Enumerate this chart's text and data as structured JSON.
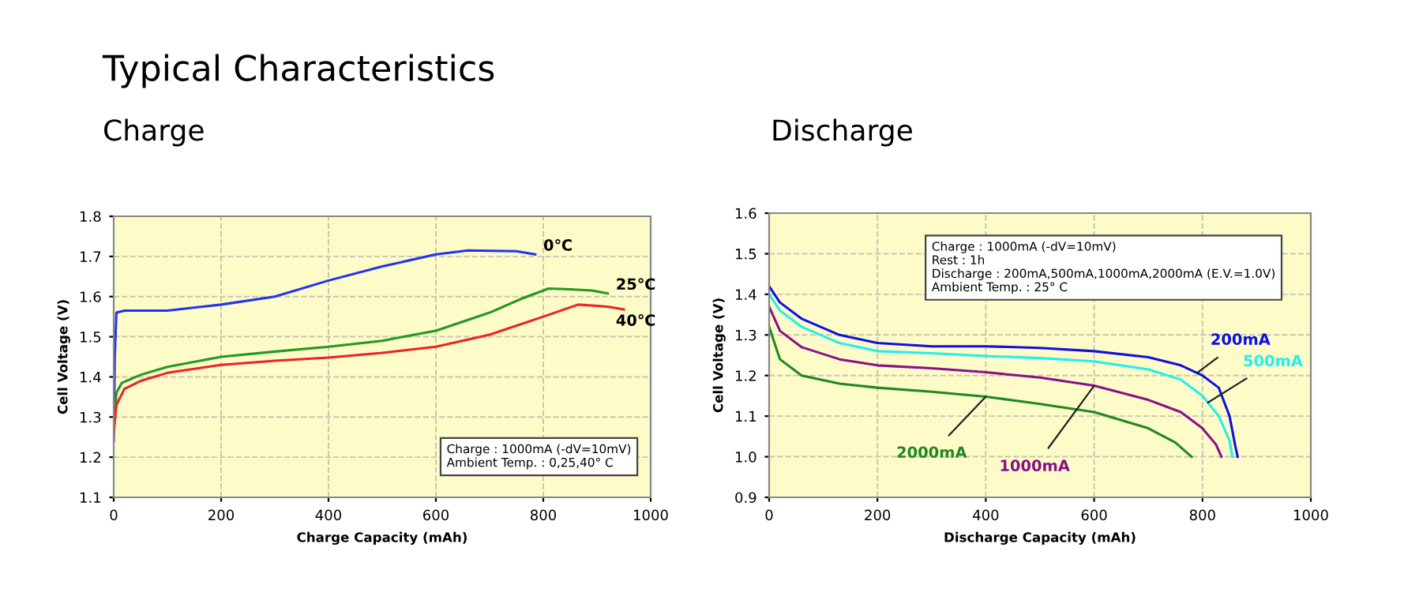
{
  "chart_data": [
    {
      "type": "line",
      "title": "Typical Characteristics",
      "subtitle": "Charge",
      "xlabel": "Charge Capacity (mAh)",
      "ylabel": "Cell Voltage (V)",
      "xlim": [
        0,
        1000
      ],
      "ylim": [
        1.1,
        1.8
      ],
      "xticks": [
        0,
        200,
        400,
        600,
        800,
        1000
      ],
      "yticks": [
        1.1,
        1.2,
        1.3,
        1.4,
        1.5,
        1.6,
        1.7,
        1.8
      ],
      "grid": true,
      "legend": false,
      "marker": "none",
      "line_style": "solid",
      "annotations": [
        "Charge : 1000mA (-dV=10mV)\nAmbient Temp. : 0,25,40° C"
      ],
      "series": [
        {
          "name": "0℃",
          "color": "#2233ee",
          "x": [
            0,
            2,
            5,
            20,
            100,
            200,
            300,
            400,
            500,
            600,
            660,
            750,
            785
          ],
          "values": [
            1.24,
            1.45,
            1.56,
            1.565,
            1.565,
            1.58,
            1.6,
            1.64,
            1.675,
            1.705,
            1.715,
            1.713,
            1.705
          ]
        },
        {
          "name": "25℃",
          "color": "#229922",
          "x": [
            0,
            5,
            15,
            50,
            100,
            200,
            300,
            400,
            500,
            600,
            700,
            760,
            810,
            850,
            890,
            920
          ],
          "values": [
            1.27,
            1.36,
            1.385,
            1.405,
            1.425,
            1.45,
            1.463,
            1.475,
            1.49,
            1.515,
            1.56,
            1.595,
            1.62,
            1.618,
            1.615,
            1.608
          ]
        },
        {
          "name": "40℃",
          "color": "#ee2222",
          "x": [
            0,
            5,
            20,
            50,
            100,
            200,
            300,
            400,
            500,
            600,
            700,
            800,
            865,
            920,
            950
          ],
          "values": [
            1.26,
            1.33,
            1.37,
            1.39,
            1.41,
            1.43,
            1.44,
            1.448,
            1.46,
            1.475,
            1.505,
            1.55,
            1.58,
            1.575,
            1.568
          ]
        }
      ]
    },
    {
      "type": "line",
      "subtitle": "Discharge",
      "xlabel": "Discharge Capacity (mAh)",
      "ylabel": "Cell Voltage (V)",
      "xlim": [
        0,
        1000
      ],
      "ylim": [
        0.9,
        1.6
      ],
      "xticks": [
        0,
        200,
        400,
        600,
        800,
        1000
      ],
      "yticks": [
        {
          "value": 0.9,
          "label": "0.9"
        },
        {
          "value": 1.0,
          "label": "1.0"
        },
        1.1,
        1.2,
        1.3,
        1.4,
        1.5,
        1.6
      ],
      "grid": true,
      "legend": false,
      "marker": "none",
      "line_style": "solid",
      "annotations": [
        "Charge : 1000mA (-dV=10mV)\nRest : 1h\nDischarge : 200mA,500mA,1000mA,2000mA (E.V.=1.0V)\nAmbient Temp. : 25° C"
      ],
      "series": [
        {
          "name": "200mA",
          "color": "#1010e0",
          "x": [
            0,
            20,
            60,
            130,
            200,
            300,
            400,
            500,
            600,
            700,
            760,
            800,
            830,
            850,
            860,
            865
          ],
          "values": [
            1.42,
            1.38,
            1.34,
            1.3,
            1.28,
            1.272,
            1.272,
            1.268,
            1.26,
            1.245,
            1.225,
            1.2,
            1.17,
            1.1,
            1.03,
            1.0
          ]
        },
        {
          "name": "500mA",
          "color": "#22eeee",
          "x": [
            0,
            20,
            60,
            130,
            200,
            300,
            400,
            500,
            600,
            700,
            760,
            800,
            830,
            850,
            855
          ],
          "values": [
            1.4,
            1.36,
            1.32,
            1.28,
            1.26,
            1.255,
            1.248,
            1.243,
            1.235,
            1.215,
            1.19,
            1.15,
            1.1,
            1.04,
            1.0
          ]
        },
        {
          "name": "1000mA",
          "color": "#881188",
          "x": [
            0,
            20,
            60,
            130,
            200,
            300,
            400,
            500,
            600,
            700,
            760,
            800,
            825,
            835
          ],
          "values": [
            1.37,
            1.31,
            1.27,
            1.24,
            1.225,
            1.218,
            1.208,
            1.195,
            1.175,
            1.14,
            1.11,
            1.07,
            1.03,
            1.0
          ]
        },
        {
          "name": "2000mA",
          "color": "#228822",
          "x": [
            0,
            20,
            60,
            130,
            200,
            300,
            400,
            500,
            600,
            700,
            750,
            780
          ],
          "values": [
            1.32,
            1.24,
            1.2,
            1.18,
            1.17,
            1.16,
            1.148,
            1.13,
            1.11,
            1.07,
            1.035,
            1.0
          ]
        }
      ]
    }
  ]
}
